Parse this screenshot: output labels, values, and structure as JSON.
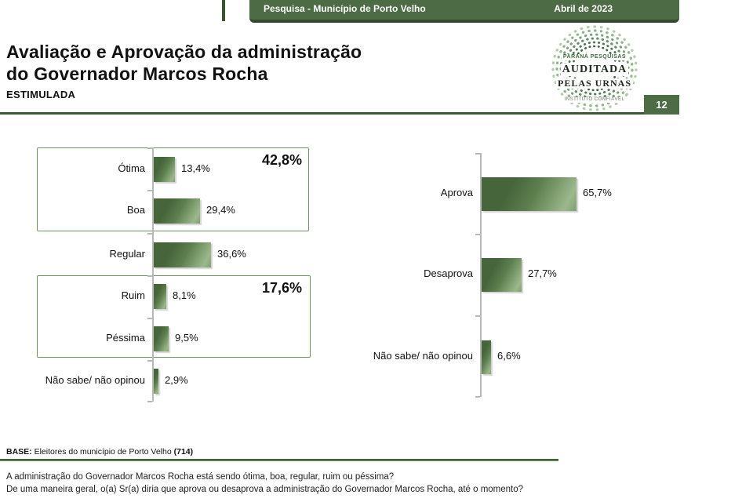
{
  "header": {
    "left": "Pesquisa - Município de Porto Velho",
    "right": "Abril de 2023"
  },
  "title": {
    "line1": "Avaliação e Aprovação da administração",
    "line2": "do Governador Marcos Rocha",
    "subtitle": "ESTIMULADA"
  },
  "logo": {
    "line1": "PARANÁ PESQUISAS",
    "line2": "AUDITADA",
    "line3": "PELAS URNAS",
    "line4": "INSTITUTO CONFIÁVEL"
  },
  "page_number": "12",
  "colors": {
    "header_green": "#4d6b44",
    "dark_green_edge": "#35492e",
    "bar_dark": "#46653b",
    "bar_light": "#9cb88c",
    "box_border": "#70925f",
    "rule_green": "#3c5733"
  },
  "chart_data": [
    {
      "type": "bar",
      "name": "Avaliação da administração",
      "orientation": "horizontal",
      "categories": [
        "Ótima",
        "Boa",
        "Regular",
        "Ruim",
        "Péssima",
        "Não sabe/ não opinou"
      ],
      "values": [
        13.4,
        29.4,
        36.6,
        8.1,
        9.5,
        2.9
      ],
      "labels": [
        "13,4%",
        "29,4%",
        "36,6%",
        "8,1%",
        "9,5%",
        "2,9%"
      ],
      "groups": [
        {
          "label": "42,8%",
          "value": 42.8,
          "covers": [
            "Ótima",
            "Boa"
          ]
        },
        {
          "label": "17,6%",
          "value": 17.6,
          "covers": [
            "Ruim",
            "Péssima"
          ]
        }
      ],
      "grid": false,
      "legend": false
    },
    {
      "type": "bar",
      "name": "Aprovação da administração",
      "orientation": "horizontal",
      "categories": [
        "Aprova",
        "Desaprova",
        "Não sabe/ não opinou"
      ],
      "values": [
        65.7,
        27.7,
        6.6
      ],
      "labels": [
        "65,7%",
        "27,7%",
        "6,6%"
      ],
      "grid": false,
      "legend": false
    }
  ],
  "footer": {
    "base_label": "BASE:",
    "base_text": " Eleitores do município de Porto Velho ",
    "base_count": "(714)",
    "question1": "A administração do Governador Marcos Rocha está sendo ótima, boa, regular, ruim ou péssima?",
    "question2": "De uma maneira geral, o(a) Sr(a) diria que aprova ou desaprova a administração do Governador Marcos Rocha, até o momento?"
  }
}
